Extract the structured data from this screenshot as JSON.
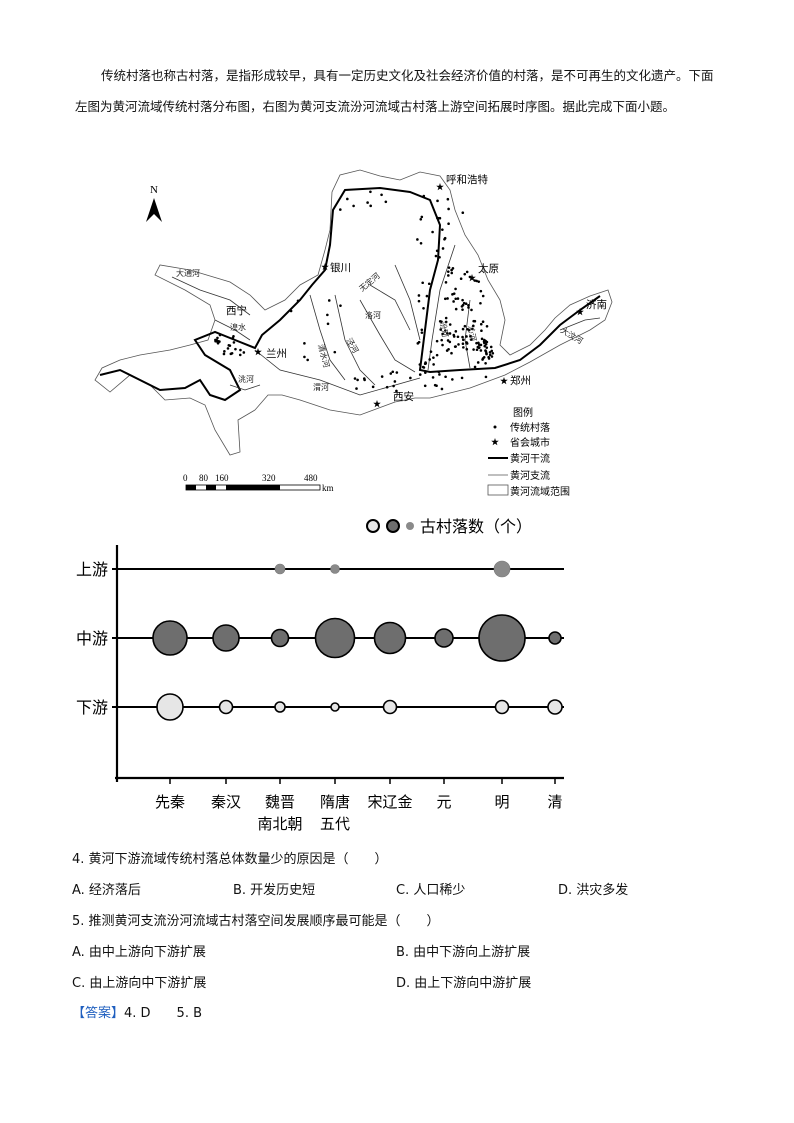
{
  "intro": {
    "text": "传统村落也称古村落，是指形成较早，具有一定历史文化及社会经济价值的村落，是不可再生的文化遗产。下面左图为黄河流域传统村落分布图，右图为黄河支流汾河流域古村落上游空间拓展时序图。据此完成下面小题。"
  },
  "map": {
    "north_label": "N",
    "cities": [
      "呼和浩特",
      "银川",
      "太原",
      "西宁",
      "兰州",
      "济南",
      "郑州",
      "西安"
    ],
    "rivers": [
      "大通河",
      "湟水",
      "洮河",
      "清水河",
      "泾河",
      "渭河",
      "洛河",
      "无定河",
      "汾河",
      "沁河",
      "大汶河"
    ],
    "legend": {
      "title": "图例",
      "items": [
        "传统村落",
        "省会城市",
        "黄河干流",
        "黄河支流",
        "黄河流域范围"
      ]
    },
    "scale": {
      "ticks": [
        "0",
        "80",
        "160",
        "320",
        "480"
      ],
      "unit": "km"
    }
  },
  "chart_data": {
    "type": "bubble",
    "legend_label": "古村落数（个）",
    "categories": [
      "先秦",
      "秦汉",
      "魏晋\n南北朝",
      "隋唐\n五代",
      "宋辽金",
      "元",
      "明",
      "清"
    ],
    "category_lines": [
      [
        "先秦"
      ],
      [
        "秦汉"
      ],
      [
        "魏晋",
        "南北朝"
      ],
      [
        "隋唐",
        "五代"
      ],
      [
        "宋辽金"
      ],
      [
        "元"
      ],
      [
        "明"
      ],
      [
        "清"
      ]
    ],
    "rows": [
      "上游",
      "中游",
      "下游"
    ],
    "series": [
      {
        "name": "上游",
        "color": "#8a8a8a",
        "relative_size": [
          0,
          0,
          5,
          4.5,
          0,
          0,
          8,
          0
        ]
      },
      {
        "name": "中游",
        "color": "#6e6e6e",
        "relative_size": [
          17,
          13,
          8.5,
          19.5,
          15.5,
          9,
          23,
          6
        ]
      },
      {
        "name": "下游",
        "color": "#e6e6e6",
        "relative_size": [
          13,
          6.5,
          5,
          4,
          6.5,
          0,
          6.5,
          7
        ]
      }
    ]
  },
  "questions": [
    {
      "stem": "4. 黄河下游流域传统村落总体数量少的原因是（　　）",
      "options": [
        "A.  经济落后",
        "B.  开发历史短",
        "C.  人口稀少",
        "D.  洪灾多发"
      ]
    },
    {
      "stem": "5. 推测黄河支流汾河流域古村落空间发展顺序最可能是（　　）",
      "options": [
        "A.  由中上游向下游扩展",
        "B.  由中下游向上游扩展",
        "C.  由上游向中下游扩展",
        "D.  由上下游向中游扩展"
      ]
    }
  ],
  "answer": {
    "tag": "【答案】",
    "text": "4. D　　5. B"
  }
}
